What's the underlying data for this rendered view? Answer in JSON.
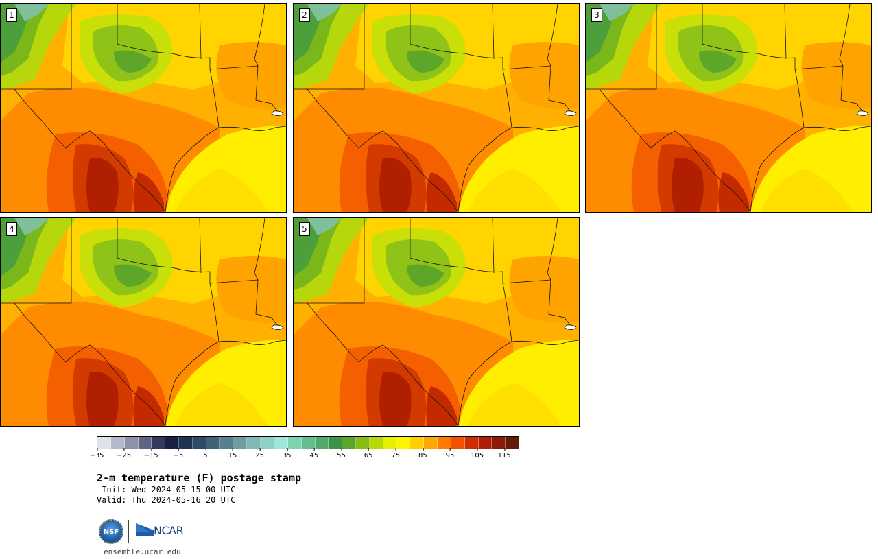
{
  "panels": [
    {
      "label": "1"
    },
    {
      "label": "2"
    },
    {
      "label": "3"
    },
    {
      "label": "4"
    },
    {
      "label": "5"
    }
  ],
  "colorbar": {
    "colors": [
      "#dfe2e8",
      "#b5b8c8",
      "#8e92a8",
      "#5f6483",
      "#333a5d",
      "#18213f",
      "#1f3350",
      "#2e4a64",
      "#3f6478",
      "#56808b",
      "#6e9ea0",
      "#80b8b3",
      "#8fd0c6",
      "#9ce8d8",
      "#7dd2b0",
      "#66be8f",
      "#4fa86c",
      "#3b9447",
      "#5aa62a",
      "#89bc13",
      "#bad709",
      "#e6ef00",
      "#fff300",
      "#ffcf00",
      "#ffa600",
      "#ff7b00",
      "#f25100",
      "#d22d00",
      "#b01d06",
      "#8c1b0b",
      "#621a0a"
    ],
    "tick_labels": [
      "−35",
      "−25",
      "−15",
      "−5",
      "5",
      "15",
      "25",
      "35",
      "45",
      "55",
      "65",
      "75",
      "85",
      "95",
      "105",
      "115"
    ],
    "range": [
      -35,
      120
    ]
  },
  "title": "2-m temperature (F) postage stamp",
  "init_line": " Init: Wed 2024-05-15 00 UTC",
  "valid_line": "Valid: Thu 2024-05-16 20 UTC",
  "logos": {
    "nsf": "NSF",
    "ncar": "NCAR"
  },
  "site": "ensemble.ucar.edu"
}
